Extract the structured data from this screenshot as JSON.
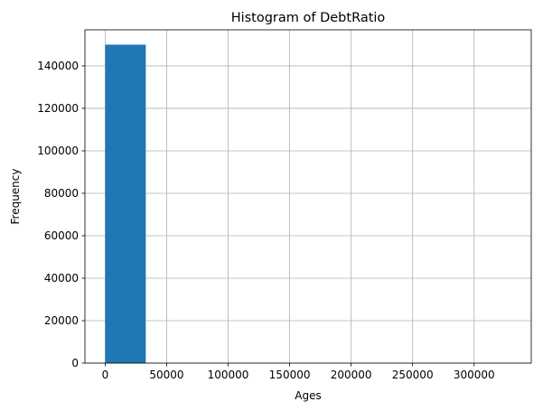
{
  "chart_data": {
    "type": "bar",
    "title": "Histogram of DebtRatio",
    "xlabel": "Ages",
    "ylabel": "Frequency",
    "xlim": [
      -16500,
      346500
    ],
    "ylim": [
      0,
      157000
    ],
    "grid": true,
    "bar_color": "#1f77b4",
    "grid_color": "#b0b0b0",
    "bins": [
      {
        "x0": 0,
        "x1": 33000,
        "count": 150000
      },
      {
        "x0": 33000,
        "x1": 66000,
        "count": 0
      },
      {
        "x0": 66000,
        "x1": 99000,
        "count": 0
      },
      {
        "x0": 99000,
        "x1": 132000,
        "count": 0
      },
      {
        "x0": 132000,
        "x1": 165000,
        "count": 0
      },
      {
        "x0": 165000,
        "x1": 198000,
        "count": 0
      },
      {
        "x0": 198000,
        "x1": 231000,
        "count": 0
      },
      {
        "x0": 231000,
        "x1": 264000,
        "count": 0
      },
      {
        "x0": 264000,
        "x1": 297000,
        "count": 0
      },
      {
        "x0": 297000,
        "x1": 330000,
        "count": 1
      }
    ],
    "xticks": [
      0,
      50000,
      100000,
      150000,
      200000,
      250000,
      300000
    ],
    "xtick_labels": [
      "0",
      "50000",
      "100000",
      "150000",
      "200000",
      "250000",
      "300000"
    ],
    "yticks": [
      0,
      20000,
      40000,
      60000,
      80000,
      100000,
      120000,
      140000
    ],
    "ytick_labels": [
      "0",
      "20000",
      "40000",
      "60000",
      "80000",
      "100000",
      "120000",
      "140000"
    ]
  }
}
